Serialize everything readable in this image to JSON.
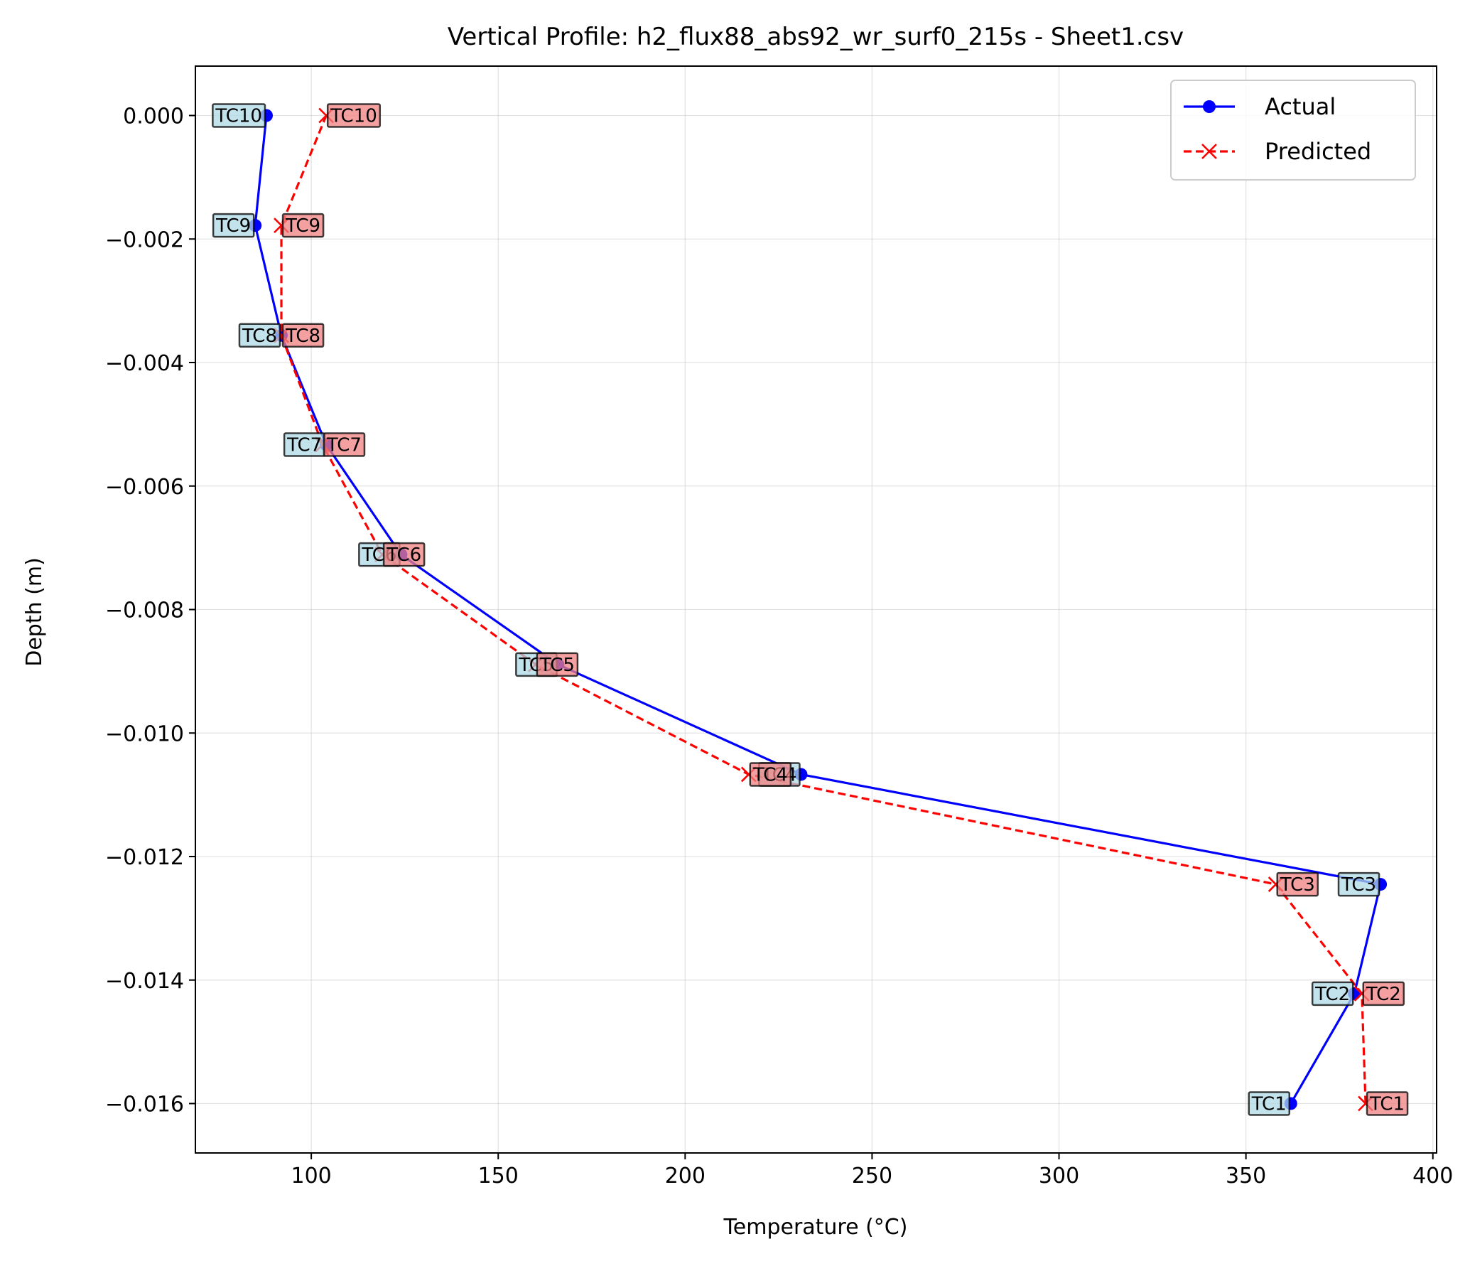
{
  "chart_data": {
    "type": "line",
    "title": "Vertical Profile: h2_flux88_abs92_wr_surf0_215s - Sheet1.csv",
    "xlabel": "Temperature (°C)",
    "ylabel": "Depth (m)",
    "xlim": [
      69,
      401
    ],
    "ylim": [
      -0.0168,
      0.0008
    ],
    "xticks": [
      100,
      150,
      200,
      250,
      300,
      350,
      400
    ],
    "xtick_labels": [
      "100",
      "150",
      "200",
      "250",
      "300",
      "350",
      "400"
    ],
    "yticks": [
      0.0,
      -0.002,
      -0.004,
      -0.006,
      -0.008,
      -0.01,
      -0.012,
      -0.014,
      -0.016
    ],
    "ytick_labels": [
      "0.000",
      "−0.002",
      "−0.004",
      "−0.006",
      "−0.008",
      "−0.010",
      "−0.012",
      "−0.014",
      "−0.016"
    ],
    "grid": true,
    "legend_position": "top-right",
    "series": [
      {
        "name": "Actual",
        "color": "#0000ff",
        "line_style": "solid",
        "marker": "circle",
        "label_box_color": "#add8e6",
        "points": [
          {
            "label": "TC1",
            "x": 362,
            "y": -0.016
          },
          {
            "label": "TC2",
            "x": 379,
            "y": -0.01422
          },
          {
            "label": "TC3",
            "x": 386,
            "y": -0.01245
          },
          {
            "label": "TC4",
            "x": 231,
            "y": -0.01067
          },
          {
            "label": "TC5",
            "x": 166,
            "y": -0.00889
          },
          {
            "label": "TC6",
            "x": 124,
            "y": -0.00711
          },
          {
            "label": "TC7",
            "x": 104,
            "y": -0.00533
          },
          {
            "label": "TC8",
            "x": 92,
            "y": -0.00356
          },
          {
            "label": "TC9",
            "x": 85,
            "y": -0.00178
          },
          {
            "label": "TC10",
            "x": 88,
            "y": 0.0
          }
        ]
      },
      {
        "name": "Predicted",
        "color": "#ff0000",
        "line_style": "dashed",
        "marker": "x",
        "label_box_color": "#f08080",
        "points": [
          {
            "label": "TC1",
            "x": 382,
            "y": -0.016
          },
          {
            "label": "TC2",
            "x": 381,
            "y": -0.01422
          },
          {
            "label": "TC3",
            "x": 358,
            "y": -0.01245
          },
          {
            "label": "TC4",
            "x": 217,
            "y": -0.01067
          },
          {
            "label": "TC5",
            "x": 160,
            "y": -0.00889
          },
          {
            "label": "TC6",
            "x": 119,
            "y": -0.00711
          },
          {
            "label": "TC7",
            "x": 103,
            "y": -0.00533
          },
          {
            "label": "TC8",
            "x": 92,
            "y": -0.00356
          },
          {
            "label": "TC9",
            "x": 92,
            "y": -0.00178
          },
          {
            "label": "TC10",
            "x": 104,
            "y": 0.0
          }
        ]
      }
    ]
  }
}
